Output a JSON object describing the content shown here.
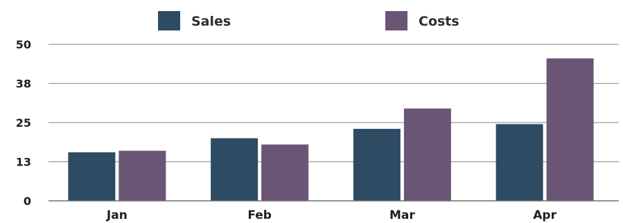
{
  "chart_data": {
    "type": "bar",
    "categories": [
      "Jan",
      "Feb",
      "Mar",
      "Apr"
    ],
    "series": [
      {
        "name": "Sales",
        "color": "#2d4b63",
        "values": [
          15.5,
          20,
          23,
          24.5
        ]
      },
      {
        "name": "Costs",
        "color": "#6a5674",
        "values": [
          16,
          18,
          29.5,
          45.5
        ]
      }
    ],
    "y_ticks": [
      "0",
      "13",
      "25",
      "38",
      "50"
    ],
    "ylim": [
      0,
      50
    ],
    "grid": true,
    "legend_position": "top",
    "title": "",
    "xlabel": "",
    "ylabel": ""
  }
}
